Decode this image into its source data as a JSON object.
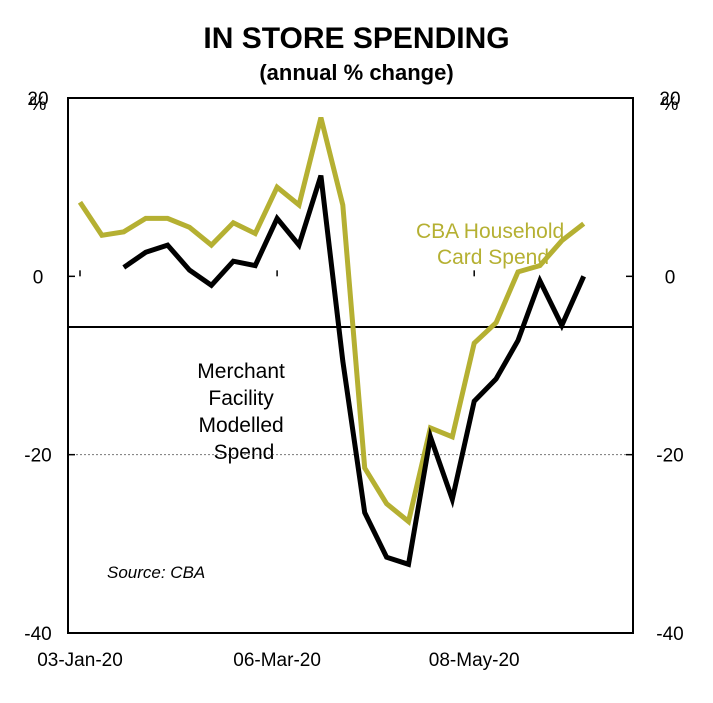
{
  "chart_data": {
    "type": "line",
    "title": "IN STORE SPENDING",
    "subtitle": "(annual % change)",
    "y_unit_left": "%",
    "y_unit_right": "%",
    "ylim": [
      -40,
      20
    ],
    "yticks": [
      20,
      0,
      -20,
      -40
    ],
    "ytick_labels": [
      "20",
      "0",
      "-20",
      "-40"
    ],
    "x_tick_labels": [
      "03-Jan-20",
      "06-Mar-20",
      "08-May-20"
    ],
    "x_tick_index": [
      0,
      9,
      18
    ],
    "n_weeks": 26,
    "source": "Source: CBA",
    "series": [
      {
        "name": "CBA Household Card Spend",
        "label_lines": [
          "CBA Household",
          "Card Spend"
        ],
        "color": "#b5b032",
        "start_index": 0,
        "values": [
          8.3,
          4.6,
          5.0,
          6.5,
          6.5,
          5.5,
          3.5,
          6.0,
          4.8,
          10.0,
          8.0,
          17.8,
          8.0,
          -21.5,
          -25.5,
          -27.5,
          -17.0,
          -18.0,
          -7.5,
          -5.2,
          0.5,
          1.2,
          4.0,
          5.9
        ]
      },
      {
        "name": "Merchant Facility Modelled Spend",
        "label_lines": [
          "Merchant",
          "Facility",
          "Modelled",
          "Spend"
        ],
        "color": "#000000",
        "start_index": 2,
        "values": [
          1.0,
          2.7,
          3.5,
          0.7,
          -1.0,
          1.7,
          1.2,
          6.5,
          3.5,
          11.3,
          -9.5,
          -26.5,
          -31.5,
          -32.3,
          -18.0,
          -25.0,
          -14.0,
          -11.5,
          -7.2,
          -0.5,
          -5.5,
          0.0
        ]
      }
    ]
  }
}
